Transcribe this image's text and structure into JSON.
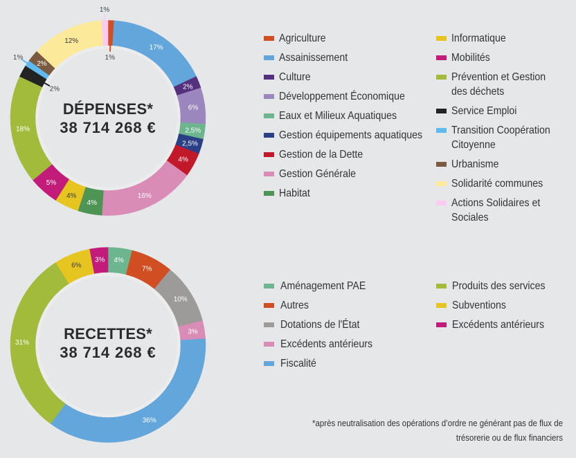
{
  "chart_data": [
    {
      "type": "pie",
      "subtype": "donut",
      "title": "DÉPENSES*",
      "center_amount": "38 714 268 €",
      "legend_placement": "right, two columns",
      "slices": [
        {
          "label": "Agriculture",
          "value": 1,
          "display": "1%",
          "color": "#d04e22",
          "label_position": "inside"
        },
        {
          "label": "Assainissement",
          "value": 17,
          "display": "17%",
          "color": "#62a6dc",
          "label_position": "on"
        },
        {
          "label": "Culture",
          "value": 2,
          "display": "2%",
          "color": "#55307f",
          "label_position": "on"
        },
        {
          "label": "Développement Économique",
          "value": 6,
          "display": "6%",
          "color": "#9b87bd",
          "label_position": "on"
        },
        {
          "label": "Eaux et Milieux Aquatiques",
          "value": 2.5,
          "display": "2,5%",
          "color": "#6db58f",
          "label_position": "on"
        },
        {
          "label": "Gestion équipements aquatiques",
          "value": 2.5,
          "display": "2,5%",
          "color": "#2a3f85",
          "label_position": "on"
        },
        {
          "label": "Gestion de la Dette",
          "value": 4,
          "display": "4%",
          "color": "#c2192a",
          "label_position": "on"
        },
        {
          "label": "Gestion Générale",
          "value": 16,
          "display": "16%",
          "color": "#d98cb6",
          "label_position": "on"
        },
        {
          "label": "Habitat",
          "value": 4,
          "display": "4%",
          "color": "#4e9555",
          "label_position": "on"
        },
        {
          "label": "Informatique",
          "value": 4,
          "display": "4%",
          "color": "#e7c520",
          "label_position": "on"
        },
        {
          "label": "Mobilités",
          "value": 5,
          "display": "5%",
          "color": "#c21b7a",
          "label_position": "on"
        },
        {
          "label": "Prévention et Gestion des déchets",
          "value": 18,
          "display": "18%",
          "color": "#a2bb3a",
          "label_position": "on"
        },
        {
          "label": "Service Emploi",
          "value": 2,
          "display": "2%",
          "color": "#232323",
          "label_position": "inside"
        },
        {
          "label": "Transition Coopération Citoyenne",
          "value": 1,
          "display": "1%",
          "color": "#5fbaf0",
          "label_position": "outside"
        },
        {
          "label": "Urbanisme",
          "value": 2,
          "display": "2%",
          "color": "#7a5a40",
          "label_position": "on"
        },
        {
          "label": "Solidarité communes",
          "value": 12,
          "display": "12%",
          "color": "#fde99a",
          "label_position": "on"
        },
        {
          "label": "Actions Solidaires et Sociales",
          "value": 1,
          "display": "1%",
          "color": "#fccbf3",
          "label_position": "outside"
        }
      ],
      "legend_columns": [
        [
          0,
          1,
          2,
          3,
          4,
          5,
          6,
          7,
          8
        ],
        [
          9,
          10,
          11,
          12,
          13,
          14,
          15,
          16
        ]
      ]
    },
    {
      "type": "pie",
      "subtype": "donut",
      "title": "RECETTES*",
      "center_amount": "38 714 268 €",
      "legend_placement": "right, two columns",
      "slices": [
        {
          "label": "Aménagement PAE",
          "value": 4,
          "display": "4%",
          "color": "#6db58f",
          "label_position": "on"
        },
        {
          "label": "Autres",
          "value": 7,
          "display": "7%",
          "color": "#d04e22",
          "label_position": "on"
        },
        {
          "label": "Dotations de l'État",
          "value": 10,
          "display": "10%",
          "color": "#9d9b99",
          "label_position": "on"
        },
        {
          "label": "Excédents antérieurs",
          "value": 3,
          "display": "3%",
          "color": "#d98cb6",
          "label_position": "on"
        },
        {
          "label": "Fiscalité",
          "value": 36,
          "display": "36%",
          "color": "#62a6dc",
          "label_position": "on"
        },
        {
          "label": "Produits des services",
          "value": 31,
          "display": "31%",
          "color": "#a2bb3a",
          "label_position": "on"
        },
        {
          "label": "Subventions",
          "value": 6,
          "display": "6%",
          "color": "#e7c520",
          "label_position": "on"
        },
        {
          "label": "Excédents antérieurs",
          "value": 3,
          "display": "3%",
          "color": "#c21b7a",
          "label_position": "on"
        }
      ],
      "legend_columns": [
        [
          0,
          1,
          2,
          3,
          4
        ],
        [
          5,
          6,
          7
        ]
      ]
    }
  ],
  "footnote": "*après neutralisation des opérations d’ordre ne générant pas de flux de trésorerie ou de flux financiers"
}
